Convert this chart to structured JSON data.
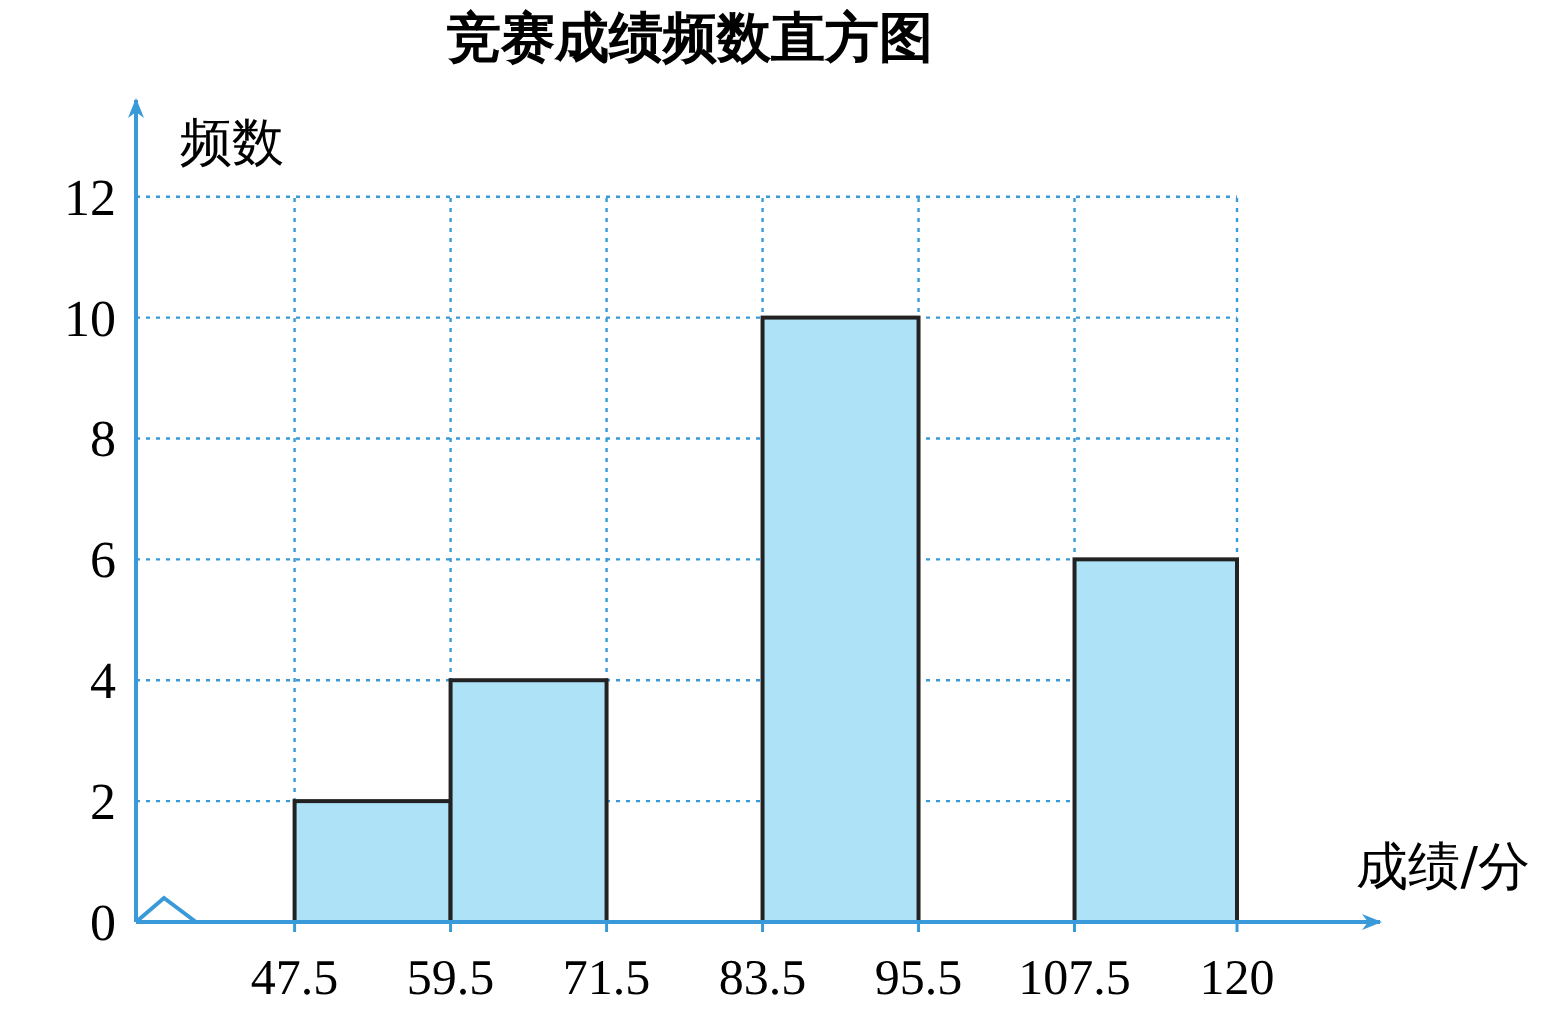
{
  "chart_data": {
    "type": "histogram",
    "title": "竞赛成绩频数直方图",
    "xlabel": "成绩/分",
    "ylabel": "频数",
    "bins": [
      47.5,
      59.5,
      71.5,
      83.5,
      95.5,
      107.5,
      120
    ],
    "values": [
      2,
      4,
      0,
      10,
      0,
      6
    ],
    "color": "#aee3f7",
    "xlim": [
      35.3,
      131
    ],
    "ylim": [
      0,
      13.6
    ],
    "xticks": [
      47.5,
      59.5,
      71.5,
      83.5,
      95.5,
      107.5,
      120
    ],
    "yticks": [
      0,
      2,
      4,
      6,
      8,
      10,
      12
    ],
    "grid": true
  }
}
